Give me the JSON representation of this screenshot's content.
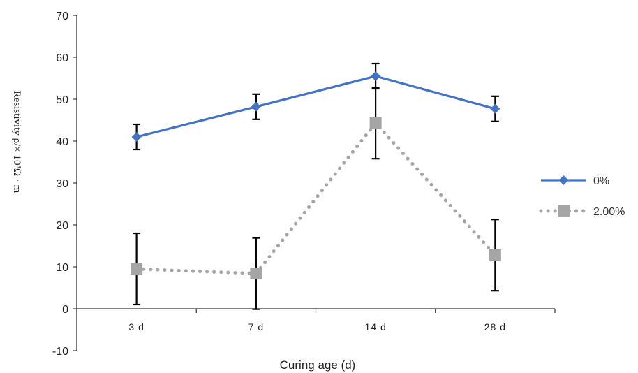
{
  "chart_data": {
    "type": "line",
    "categories": [
      "3 d",
      "7 d",
      "14 d",
      "28 d"
    ],
    "xlabel": "Curing age (d)",
    "ylabel": "Resistivity ρ/× 10³Ω · m",
    "ylim": [
      -10,
      70
    ],
    "yticks": [
      -10,
      0,
      10,
      20,
      30,
      40,
      50,
      60,
      70
    ],
    "grid": false,
    "legend_position": "right",
    "series": [
      {
        "name": "0%",
        "values": [
          41.0,
          48.2,
          55.5,
          47.7
        ],
        "errors": [
          3.0,
          3.0,
          3.0,
          3.0
        ],
        "color": "#4472C4",
        "marker": "diamond",
        "line_style": "solid"
      },
      {
        "name": "2.00%",
        "values": [
          9.5,
          8.4,
          44.3,
          12.8
        ],
        "errors": [
          8.5,
          8.5,
          8.5,
          8.5
        ],
        "color": "#A5A5A5",
        "marker": "square",
        "line_style": "dotted"
      }
    ],
    "error_bar_color": "#000000"
  }
}
